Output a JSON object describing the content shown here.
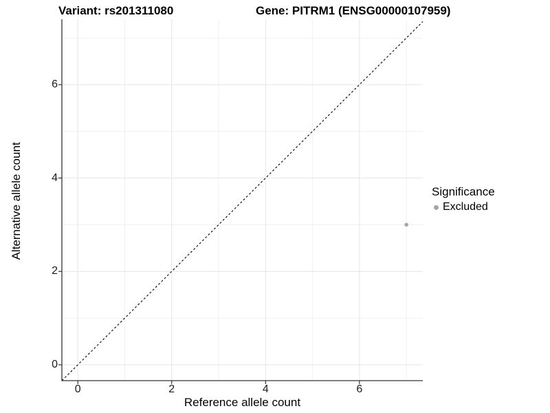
{
  "chart_data": {
    "type": "scatter",
    "title_parts": [
      "Variant: rs201311080",
      "Gene: PITRM1 (ENSG00000107959)"
    ],
    "xlabel": "Reference allele count",
    "ylabel": "Alternative allele count",
    "xlim": [
      -0.34,
      7.35
    ],
    "ylim": [
      -0.34,
      7.4
    ],
    "xticks": [
      0,
      2,
      4,
      6
    ],
    "yticks": [
      0,
      2,
      4,
      6
    ],
    "xminor": [
      1,
      3,
      5,
      7
    ],
    "yminor": [
      1,
      3,
      5,
      7
    ],
    "grid": true,
    "series": [
      {
        "name": "Excluded",
        "color": "#a6a6a6",
        "points": [
          {
            "x": 7,
            "y": 3
          }
        ]
      }
    ],
    "reference_line": {
      "type": "abline",
      "slope": 1,
      "intercept": 0,
      "style": "dashed",
      "color": "#000000"
    },
    "legend": {
      "title": "Significance",
      "position": "right",
      "entries": [
        {
          "label": "Excluded",
          "color": "#a6a6a6",
          "marker": "circle"
        }
      ]
    },
    "colors": {
      "grid_major": "#e4e4e4",
      "grid_minor": "#f0f0f0",
      "axis_line": "#333333",
      "tick_mark": "#333333",
      "point": "#a6a6a6"
    }
  }
}
